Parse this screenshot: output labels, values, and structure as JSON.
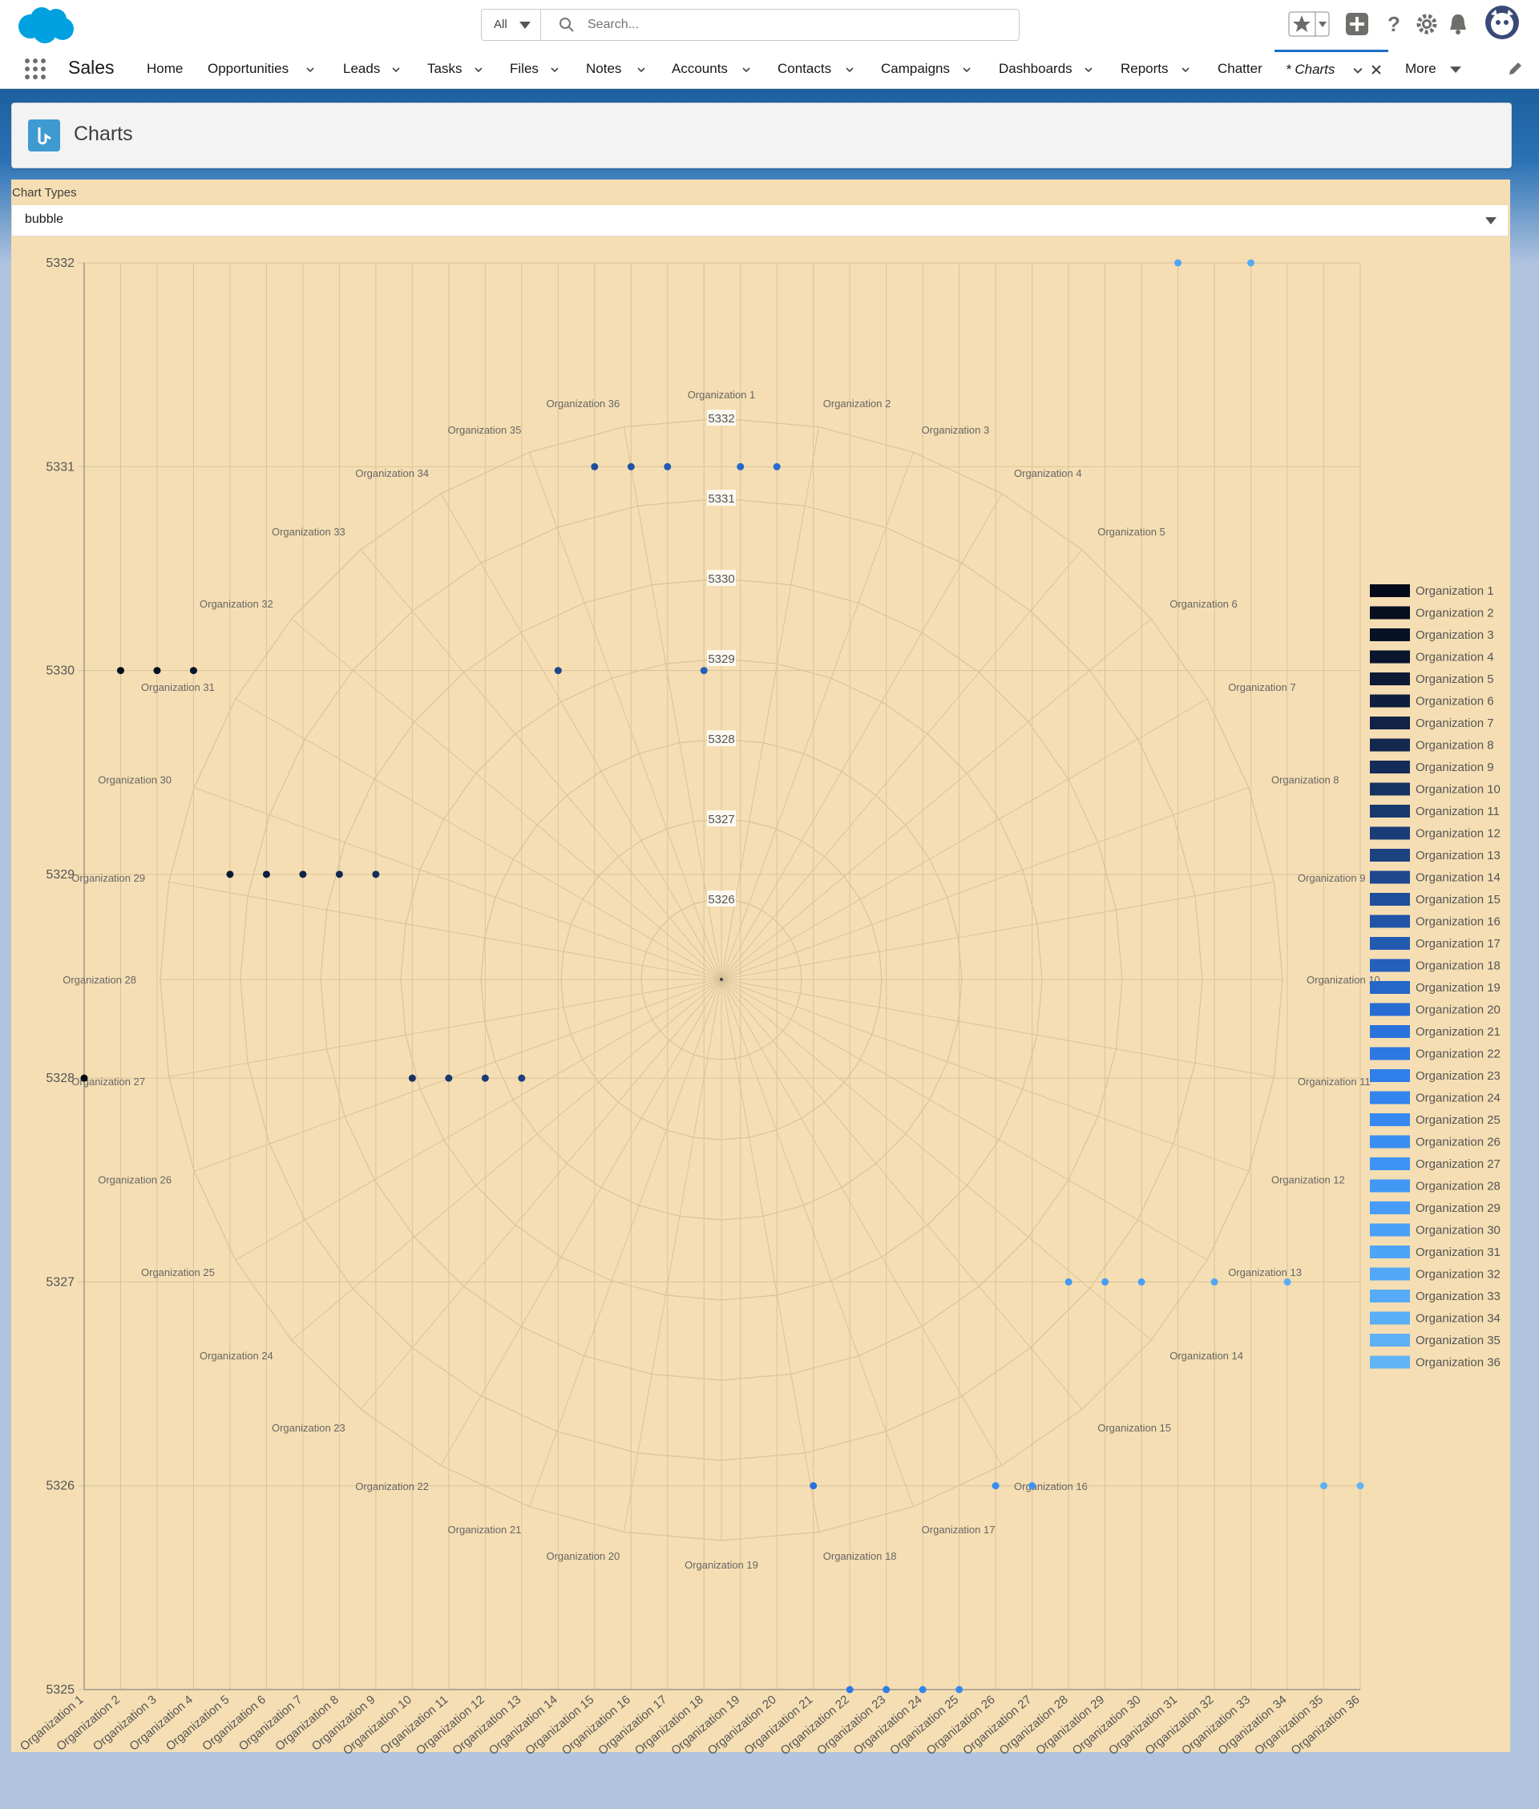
{
  "header": {
    "search_scope": "All",
    "search_placeholder": "Search..."
  },
  "nav": {
    "app_name": "Sales",
    "items": [
      {
        "label": "Home",
        "has_menu": false
      },
      {
        "label": "Opportunities",
        "has_menu": true
      },
      {
        "label": "Leads",
        "has_menu": true
      },
      {
        "label": "Tasks",
        "has_menu": true
      },
      {
        "label": "Files",
        "has_menu": true
      },
      {
        "label": "Notes",
        "has_menu": true
      },
      {
        "label": "Accounts",
        "has_menu": true
      },
      {
        "label": "Contacts",
        "has_menu": true
      },
      {
        "label": "Campaigns",
        "has_menu": true
      },
      {
        "label": "Dashboards",
        "has_menu": true
      },
      {
        "label": "Reports",
        "has_menu": true
      },
      {
        "label": "Chatter",
        "has_menu": false
      }
    ],
    "active_tab": "* Charts",
    "more_label": "More"
  },
  "page": {
    "title": "Charts",
    "chart_type_label": "Chart Types",
    "chart_type_value": "bubble"
  },
  "colors": {
    "panel_bg": "#f5deb3",
    "brand_blue": "#1b6fc8"
  },
  "chart_data": {
    "type": "scatter",
    "subtype": "bubble with overlaid polar area",
    "categories": [
      "Organization 1",
      "Organization 2",
      "Organization 3",
      "Organization 4",
      "Organization 5",
      "Organization 6",
      "Organization 7",
      "Organization 8",
      "Organization 9",
      "Organization 10",
      "Organization 11",
      "Organization 12",
      "Organization 13",
      "Organization 14",
      "Organization 15",
      "Organization 16",
      "Organization 17",
      "Organization 18",
      "Organization 19",
      "Organization 20",
      "Organization 21",
      "Organization 22",
      "Organization 23",
      "Organization 24",
      "Organization 25",
      "Organization 26",
      "Organization 27",
      "Organization 28",
      "Organization 29",
      "Organization 30",
      "Organization 31",
      "Organization 32",
      "Organization 33",
      "Organization 34",
      "Organization 35",
      "Organization 36"
    ],
    "ylim": [
      5325,
      5332
    ],
    "y_ticks": [
      5332,
      5331,
      5330,
      5329,
      5328,
      5327,
      5326,
      5325
    ],
    "radial_ticks": [
      5332,
      5331,
      5330,
      5329,
      5328,
      5327,
      5326
    ],
    "values": [
      5328,
      5330,
      5330,
      5330,
      5329,
      5329,
      5329,
      5329,
      5329,
      5328,
      5328,
      5328,
      5328,
      5330,
      5331,
      5331,
      5331,
      5330,
      5331,
      5331,
      5326,
      5325,
      5325,
      5325,
      5325,
      5326,
      5326,
      5327,
      5327,
      5327,
      5332,
      5327,
      5332,
      5327,
      5326,
      5326
    ],
    "series_colors": [
      "#040a18",
      "#060e20",
      "#081227",
      "#0a162e",
      "#0c1a36",
      "#0e1e3e",
      "#102346",
      "#12284f",
      "#142d58",
      "#163262",
      "#18376c",
      "#1a3c77",
      "#1c4282",
      "#1e488e",
      "#1f4e9a",
      "#2154a6",
      "#225ab2",
      "#2460bd",
      "#2566c9",
      "#276cd3",
      "#2a72dc",
      "#2d78e3",
      "#307ee9",
      "#3384ed",
      "#3689f0",
      "#3a8ef2",
      "#3e93f4",
      "#4298f5",
      "#469cf6",
      "#4aa0f6",
      "#4ea4f6",
      "#52a8f6",
      "#56abf6",
      "#5aaef6",
      "#5eb1f5",
      "#62b4f4"
    ],
    "grid": true,
    "legend": "right"
  }
}
